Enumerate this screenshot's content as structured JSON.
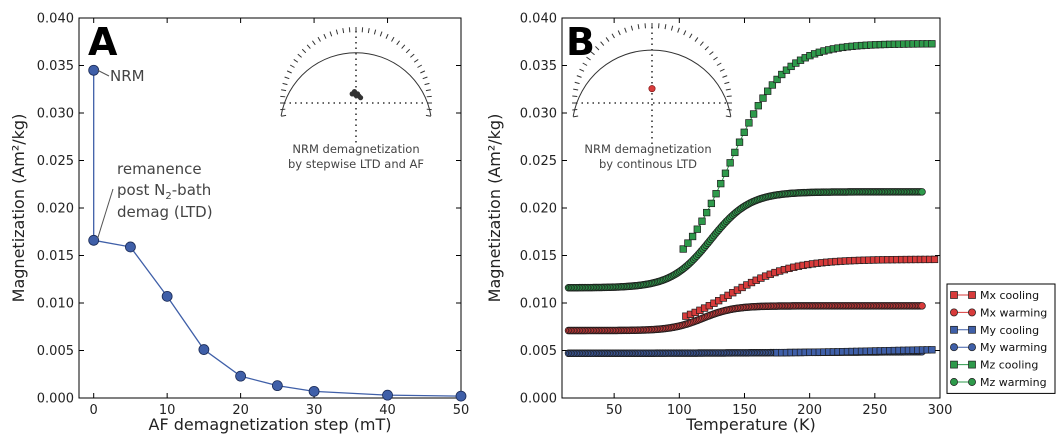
{
  "chart_data": [
    {
      "type": "line",
      "panel_label": "A",
      "xlabel": "AF demagnetization step (mT)",
      "ylabel": "Magnetization (Am²/kg)",
      "xlim": [
        -2,
        50
      ],
      "ylim": [
        0,
        0.04
      ],
      "xticks": [
        "0",
        "10",
        "20",
        "30",
        "40",
        "50"
      ],
      "yticks": [
        "0.000",
        "0.005",
        "0.010",
        "0.015",
        "0.020",
        "0.025",
        "0.030",
        "0.035",
        "0.040"
      ],
      "x": [
        0,
        0,
        5,
        10,
        15,
        20,
        25,
        30,
        40,
        50
      ],
      "y": [
        0.0345,
        0.0166,
        0.0159,
        0.0107,
        0.0051,
        0.0023,
        0.0013,
        0.0007,
        0.0003,
        0.0002
      ],
      "color": "#3f5fa8",
      "annotations": {
        "nrm": "NRM",
        "remanence_line1": "remanence",
        "remanence_line2_prefix": "post N",
        "remanence_line2_sub": "2",
        "remanence_line2_suffix": "-bath",
        "remanence_line3": "demag (LTD)"
      },
      "inset": {
        "caption_line1": "NRM demagnetization",
        "caption_line2": "by stepwise LTD and AF",
        "points": [
          [
            -0.05,
            0.12
          ],
          [
            -0.02,
            0.15
          ],
          [
            0.02,
            0.12
          ],
          [
            0.04,
            0.09
          ],
          [
            0.06,
            0.07
          ],
          [
            0.0,
            0.1
          ]
        ],
        "point_color": "#333333"
      },
      "grid": false
    },
    {
      "type": "line",
      "panel_label": "B",
      "xlabel": "Temperature (K)",
      "ylabel": "Magnetization (Am²/kg)",
      "xlim": [
        10,
        300
      ],
      "ylim": [
        0,
        0.04
      ],
      "xticks": [
        "50",
        "100",
        "150",
        "200",
        "250",
        "300"
      ],
      "yticks": [
        "0.000",
        "0.005",
        "0.010",
        "0.015",
        "0.020",
        "0.025",
        "0.030",
        "0.035",
        "0.040"
      ],
      "series": [
        {
          "name": "Mx cooling",
          "marker": "square",
          "color": "#d83b3b",
          "line": "#d83b3b",
          "base": 0.0071,
          "top": 0.0146,
          "mid": 138,
          "width": 24,
          "x_start": 105,
          "x_end": 297,
          "step": 3.6
        },
        {
          "name": "Mx warming",
          "marker": "circle",
          "color": "#d83b3b",
          "line": "#d83b3b",
          "base": 0.0071,
          "top": 0.0097,
          "mid": 118,
          "width": 12,
          "x_start": 15,
          "x_end": 287,
          "step": 1.2
        },
        {
          "name": "My cooling",
          "marker": "square",
          "color": "#3f5fa8",
          "line": "#3f5fa8",
          "base": 0.0047,
          "top": 0.0052,
          "mid": 250,
          "width": 40,
          "x_start": 175,
          "x_end": 297,
          "step": 3.6
        },
        {
          "name": "My warming",
          "marker": "circle",
          "color": "#3f5fa8",
          "line": "#3f5fa8",
          "base": 0.0047,
          "top": 0.0049,
          "mid": 200,
          "width": 50,
          "x_start": 15,
          "x_end": 287,
          "step": 1.2
        },
        {
          "name": "Mz cooling",
          "marker": "square",
          "color": "#2e9a4b",
          "line": "#2e9a4b",
          "base": 0.0116,
          "top": 0.0373,
          "mid": 138,
          "width": 21,
          "x_start": 103,
          "x_end": 297,
          "step": 3.6
        },
        {
          "name": "Mz warming",
          "marker": "circle",
          "color": "#2e9a4b",
          "line": "#2e9a4b",
          "base": 0.0116,
          "top": 0.0217,
          "mid": 124,
          "width": 15,
          "x_start": 15,
          "x_end": 287,
          "step": 1.2
        }
      ],
      "legend_position": "outside-right-bottom",
      "inset": {
        "caption_line1": "NRM demagnetization",
        "caption_line2": "by continous LTD",
        "point": [
          0.0,
          0.18
        ],
        "point_color": "#d83b3b"
      },
      "grid": false
    }
  ]
}
